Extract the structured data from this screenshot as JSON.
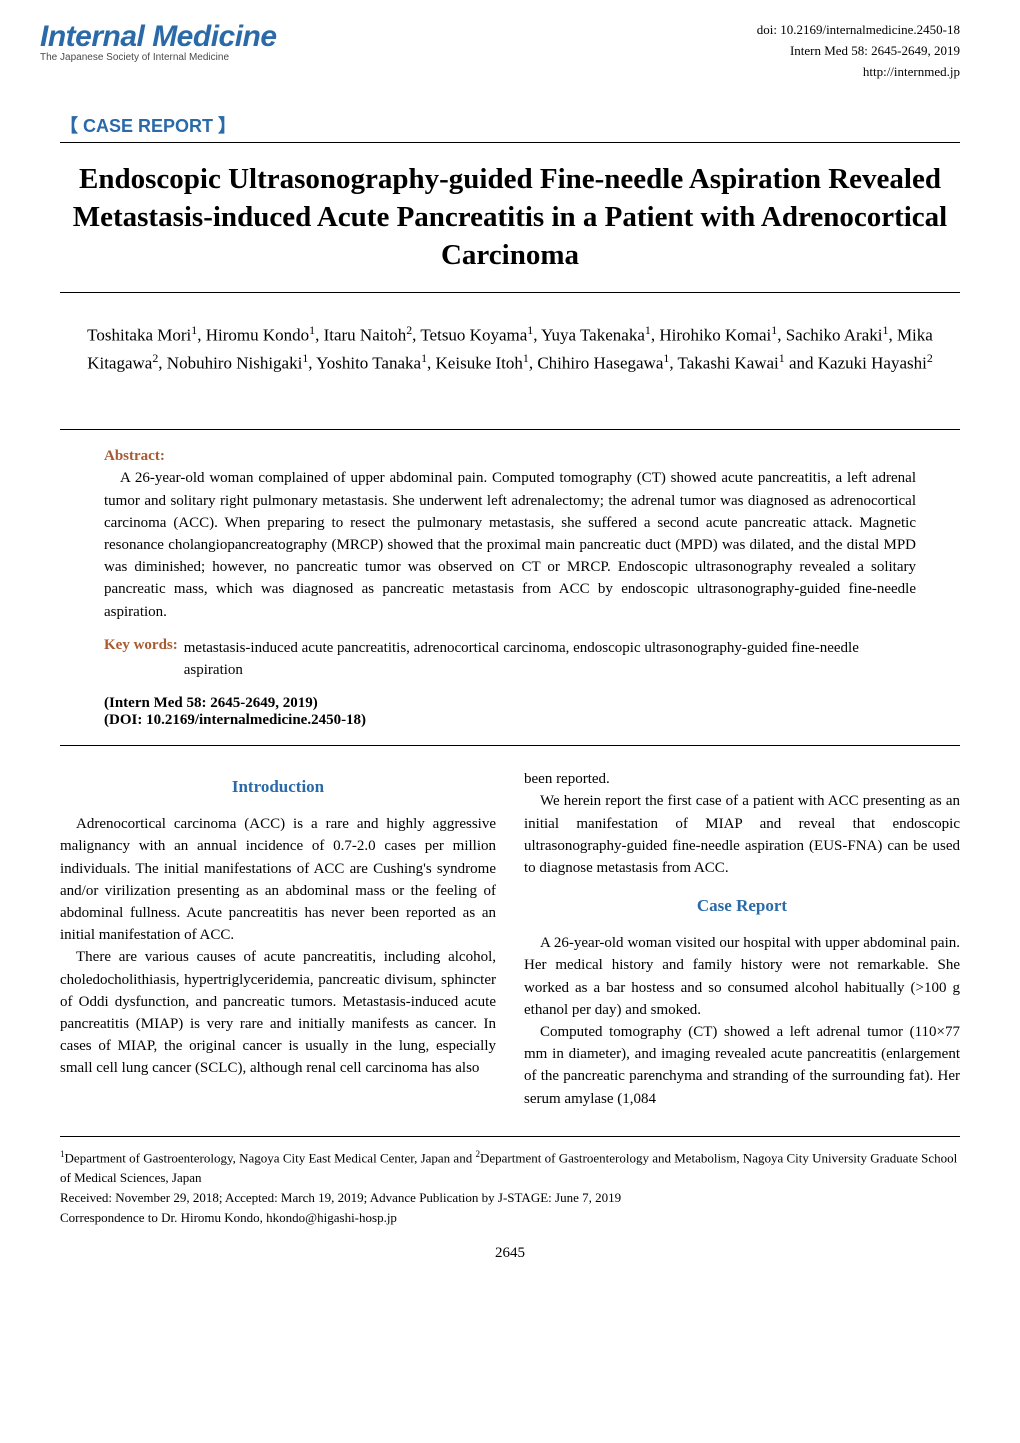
{
  "header": {
    "journal_title": "Internal Medicine",
    "journal_subtitle": "The Japanese Society of Internal Medicine",
    "doi": "doi: 10.2169/internalmedicine.2450-18",
    "citation": "Intern Med 58: 2645-2649, 2019",
    "url": "http://internmed.jp"
  },
  "case_report_label": "【 CASE REPORT 】",
  "article_title": "Endoscopic Ultrasonography-guided Fine-needle Aspiration Revealed Metastasis-induced Acute Pancreatitis in a Patient with Adrenocortical Carcinoma",
  "authors_html": "Toshitaka Mori<sup>1</sup>, Hiromu Kondo<sup>1</sup>, Itaru Naitoh<sup>2</sup>, Tetsuo Koyama<sup>1</sup>, Yuya Takenaka<sup>1</sup>, Hirohiko Komai<sup>1</sup>, Sachiko Araki<sup>1</sup>, Mika Kitagawa<sup>2</sup>, Nobuhiro Nishigaki<sup>1</sup>, Yoshito Tanaka<sup>1</sup>, Keisuke Itoh<sup>1</sup>, Chihiro Hasegawa<sup>1</sup>, Takashi Kawai<sup>1</sup> and Kazuki Hayashi<sup>2</sup>",
  "abstract": {
    "label": "Abstract:",
    "text": "A 26-year-old woman complained of upper abdominal pain. Computed tomography (CT) showed acute pancreatitis, a left adrenal tumor and solitary right pulmonary metastasis. She underwent left adrenalectomy; the adrenal tumor was diagnosed as adrenocortical carcinoma (ACC). When preparing to resect the pulmonary metastasis, she suffered a second acute pancreatic attack. Magnetic resonance cholangiopancreatography (MRCP) showed that the proximal main pancreatic duct (MPD) was dilated, and the distal MPD was diminished; however, no pancreatic tumor was observed on CT or MRCP. Endoscopic ultrasonography revealed a solitary pancreatic mass, which was diagnosed as pancreatic metastasis from ACC by endoscopic ultrasonography-guided fine-needle aspiration."
  },
  "keywords": {
    "label": "Key words:",
    "text": "metastasis-induced acute pancreatitis, adrenocortical carcinoma, endoscopic ultrasonography-guided fine-needle aspiration"
  },
  "citation_block": {
    "line1": "(Intern Med 58: 2645-2649, 2019)",
    "line2": "(DOI: 10.2169/internalmedicine.2450-18)"
  },
  "sections": {
    "introduction": {
      "heading": "Introduction",
      "p1": "Adrenocortical carcinoma (ACC) is a rare and highly aggressive malignancy with an annual incidence of 0.7-2.0 cases per million individuals. The initial manifestations of ACC are Cushing's syndrome and/or virilization presenting as an abdominal mass or the feeling of abdominal fullness. Acute pancreatitis has never been reported as an initial manifestation of ACC.",
      "p2": "There are various causes of acute pancreatitis, including alcohol, choledocholithiasis, hypertriglyceridemia, pancreatic divisum, sphincter of Oddi dysfunction, and pancreatic tumors. Metastasis-induced acute pancreatitis (MIAP) is very rare and initially manifests as cancer. In cases of MIAP, the original cancer is usually in the lung, especially small cell lung cancer (SCLC), although renal cell carcinoma has also",
      "col2_p1": "been reported.",
      "col2_p2": "We herein report the first case of a patient with ACC presenting as an initial manifestation of MIAP and reveal that endoscopic ultrasonography-guided fine-needle aspiration (EUS-FNA) can be used to diagnose metastasis from ACC."
    },
    "case_report": {
      "heading": "Case Report",
      "p1": "A 26-year-old woman visited our hospital with upper abdominal pain. Her medical history and family history were not remarkable. She worked as a bar hostess and so consumed alcohol habitually (>100 g ethanol per day) and smoked.",
      "p2": "Computed tomography (CT) showed a left adrenal tumor (110×77 mm in diameter), and imaging revealed acute pancreatitis (enlargement of the pancreatic parenchyma and stranding of the surrounding fat). Her serum amylase (1,084"
    }
  },
  "footnote": {
    "affiliations_html": "<sup>1</sup>Department of Gastroenterology, Nagoya City East Medical Center, Japan and <sup>2</sup>Department of Gastroenterology and Metabolism, Nagoya City University Graduate School of Medical Sciences, Japan",
    "received": "Received: November 29, 2018; Accepted: March 19, 2019; Advance Publication by J-STAGE: June 7, 2019",
    "correspondence": "Correspondence to Dr. Hiromu Kondo, hkondo@higashi-hosp.jp"
  },
  "page_number": "2645",
  "colors": {
    "accent_blue": "#2a6aa8",
    "accent_brown": "#a85a30",
    "text": "#000000",
    "background": "#ffffff"
  },
  "typography": {
    "body_family": "Times New Roman",
    "heading_family": "Arial",
    "journal_title_size_pt": 30,
    "article_title_size_pt": 29,
    "body_size_pt": 15,
    "footnote_size_pt": 13
  }
}
